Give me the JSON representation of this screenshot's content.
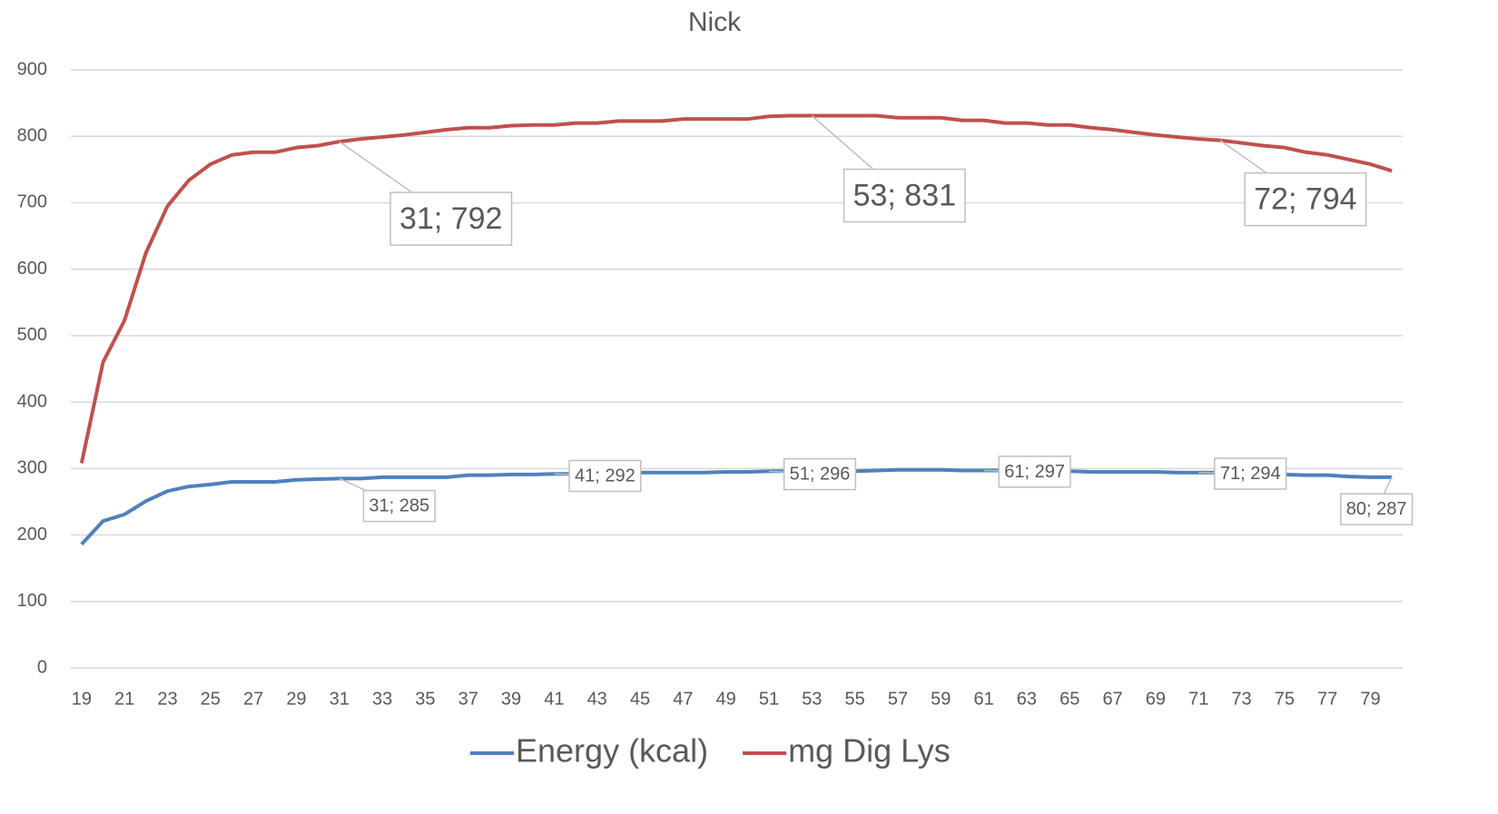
{
  "chart_data": {
    "type": "line",
    "title": "Nick",
    "x": [
      19,
      20,
      21,
      22,
      23,
      24,
      25,
      26,
      27,
      28,
      29,
      30,
      31,
      32,
      33,
      34,
      35,
      36,
      37,
      38,
      39,
      40,
      41,
      42,
      43,
      44,
      45,
      46,
      47,
      48,
      49,
      50,
      51,
      52,
      53,
      54,
      55,
      56,
      57,
      58,
      59,
      60,
      61,
      62,
      63,
      64,
      65,
      66,
      67,
      68,
      69,
      70,
      71,
      72,
      73,
      74,
      75,
      76,
      77,
      78,
      79,
      80
    ],
    "xlim": [
      18.5,
      80.5
    ],
    "xticks": [
      19,
      21,
      23,
      25,
      27,
      29,
      31,
      33,
      35,
      37,
      39,
      41,
      43,
      45,
      47,
      49,
      51,
      53,
      55,
      57,
      59,
      61,
      63,
      65,
      67,
      69,
      71,
      73,
      75,
      77,
      79
    ],
    "ylim": [
      0,
      900
    ],
    "yticks": [
      0,
      100,
      200,
      300,
      400,
      500,
      600,
      700,
      800,
      900
    ],
    "grid": true,
    "legend": "bottom",
    "series": [
      {
        "name": "Energy (kcal)",
        "color": "#4f81bd",
        "values": [
          186,
          221,
          231,
          251,
          266,
          273,
          276,
          280,
          280,
          280,
          283,
          284,
          285,
          285,
          287,
          287,
          287,
          287,
          290,
          290,
          291,
          291,
          292,
          292,
          293,
          294,
          294,
          294,
          294,
          294,
          295,
          295,
          296,
          296,
          296,
          296,
          296,
          297,
          298,
          298,
          298,
          297,
          297,
          297,
          296,
          296,
          296,
          295,
          295,
          295,
          295,
          294,
          294,
          294,
          293,
          292,
          291,
          290,
          290,
          288,
          287,
          287
        ],
        "value_labels": [
          null,
          null,
          null,
          null,
          null,
          null,
          null,
          null,
          null,
          null,
          null,
          null,
          "31; 285",
          null,
          null,
          null,
          null,
          null,
          null,
          null,
          null,
          null,
          "41; 292",
          null,
          null,
          null,
          null,
          null,
          null,
          null,
          null,
          null,
          "51; 296",
          null,
          null,
          null,
          null,
          null,
          null,
          null,
          null,
          null,
          "61; 297",
          null,
          null,
          null,
          null,
          null,
          null,
          null,
          null,
          null,
          "71; 294",
          null,
          null,
          null,
          null,
          null,
          null,
          null,
          null,
          "80; 287"
        ]
      },
      {
        "name": "mg Dig Lys",
        "color": "#c0504d",
        "values": [
          308,
          460,
          523,
          625,
          695,
          734,
          758,
          772,
          776,
          776,
          783,
          786,
          792,
          796,
          799,
          802,
          806,
          810,
          813,
          813,
          816,
          817,
          817,
          820,
          820,
          823,
          823,
          823,
          826,
          826,
          826,
          826,
          830,
          831,
          831,
          831,
          831,
          831,
          828,
          828,
          828,
          824,
          824,
          820,
          820,
          817,
          817,
          813,
          810,
          806,
          802,
          799,
          796,
          794,
          790,
          786,
          783,
          776,
          772,
          765,
          758,
          748
        ],
        "value_labels": [
          null,
          null,
          null,
          null,
          null,
          null,
          null,
          null,
          null,
          null,
          null,
          null,
          "31; 792",
          null,
          null,
          null,
          null,
          null,
          null,
          null,
          null,
          null,
          null,
          null,
          null,
          null,
          null,
          null,
          null,
          null,
          null,
          null,
          null,
          null,
          "53; 831",
          null,
          null,
          null,
          null,
          null,
          null,
          null,
          null,
          null,
          null,
          null,
          null,
          null,
          null,
          null,
          null,
          null,
          null,
          "72; 794",
          null,
          null,
          null,
          null,
          null,
          null,
          null,
          null
        ]
      }
    ]
  }
}
